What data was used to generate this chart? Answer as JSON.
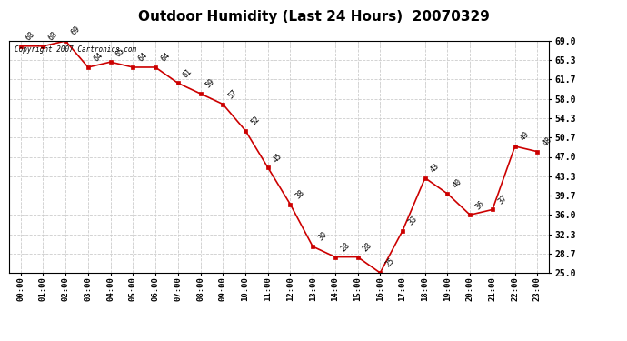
{
  "title": "Outdoor Humidity (Last 24 Hours)  20070329",
  "hours": [
    "00:00",
    "01:00",
    "02:00",
    "03:00",
    "04:00",
    "05:00",
    "06:00",
    "07:00",
    "08:00",
    "09:00",
    "10:00",
    "11:00",
    "12:00",
    "13:00",
    "14:00",
    "15:00",
    "16:00",
    "17:00",
    "18:00",
    "19:00",
    "20:00",
    "21:00",
    "22:00",
    "23:00"
  ],
  "values": [
    68,
    68,
    69,
    64,
    65,
    64,
    64,
    61,
    59,
    57,
    52,
    45,
    38,
    30,
    28,
    28,
    25,
    33,
    43,
    40,
    36,
    37,
    49,
    48
  ],
  "yticks": [
    25.0,
    28.7,
    32.3,
    36.0,
    39.7,
    43.3,
    47.0,
    50.7,
    54.3,
    58.0,
    61.7,
    65.3,
    69.0
  ],
  "line_color": "#cc0000",
  "marker_color": "#cc0000",
  "bg_color": "#ffffff",
  "plot_bg_color": "#ffffff",
  "grid_color": "#cccccc",
  "title_fontsize": 11,
  "copyright_text": "Copyright 2007 Cartronics.com",
  "ylim_min": 25.0,
  "ylim_max": 69.0
}
